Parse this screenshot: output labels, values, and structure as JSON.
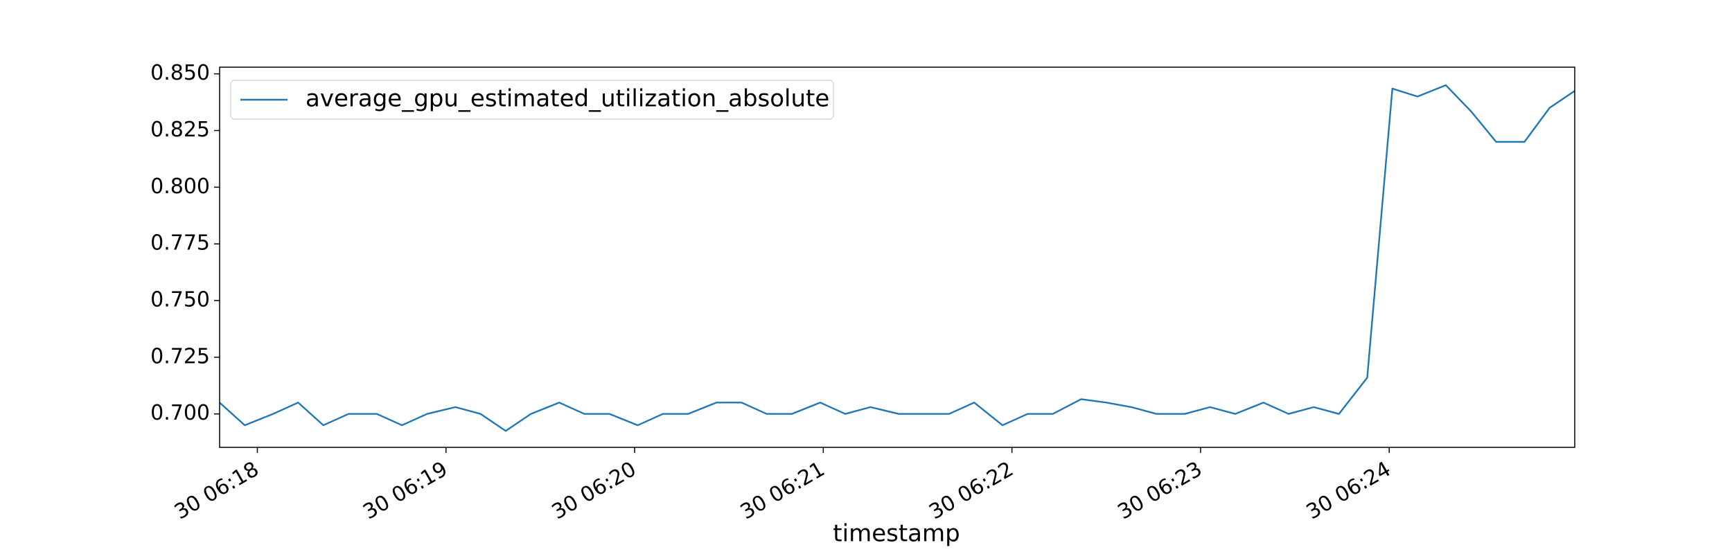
{
  "chart_data": {
    "type": "line",
    "xlabel": "timestamp",
    "x": [
      "30 06:17:48",
      "30 06:17:56",
      "30 06:18:05",
      "30 06:18:13",
      "30 06:18:21",
      "30 06:18:29",
      "30 06:18:38",
      "30 06:18:46",
      "30 06:18:54",
      "30 06:19:03",
      "30 06:19:11",
      "30 06:19:19",
      "30 06:19:27",
      "30 06:19:36",
      "30 06:19:44",
      "30 06:19:52",
      "30 06:20:01",
      "30 06:20:09",
      "30 06:20:17",
      "30 06:20:26",
      "30 06:20:34",
      "30 06:20:42",
      "30 06:20:50",
      "30 06:20:59",
      "30 06:21:07",
      "30 06:21:15",
      "30 06:21:24",
      "30 06:21:32",
      "30 06:21:40",
      "30 06:21:48",
      "30 06:21:57",
      "30 06:22:05",
      "30 06:22:13",
      "30 06:22:22",
      "30 06:22:30",
      "30 06:22:38",
      "30 06:22:46",
      "30 06:22:55",
      "30 06:23:03",
      "30 06:23:11",
      "30 06:23:20",
      "30 06:23:28",
      "30 06:23:36",
      "30 06:23:44",
      "30 06:23:53",
      "30 06:24:01",
      "30 06:24:09",
      "30 06:24:18",
      "30 06:24:26",
      "30 06:24:34",
      "30 06:24:43",
      "30 06:24:51",
      "30 06:24:59"
    ],
    "series": [
      {
        "name": "average_gpu_estimated_utilization_absolute",
        "color": "#1f77b4",
        "values": [
          0.705,
          0.695,
          0.7,
          0.705,
          0.695,
          0.7,
          0.7,
          0.695,
          0.7,
          0.703,
          0.7,
          0.6925,
          0.7,
          0.705,
          0.7,
          0.7,
          0.695,
          0.7,
          0.7,
          0.705,
          0.705,
          0.7,
          0.7,
          0.705,
          0.7,
          0.703,
          0.7,
          0.7,
          0.7,
          0.705,
          0.695,
          0.7,
          0.7,
          0.7065,
          0.705,
          0.703,
          0.7,
          0.7,
          0.703,
          0.7,
          0.705,
          0.7,
          0.703,
          0.7,
          0.716,
          0.8435,
          0.84,
          0.845,
          0.8335,
          0.82,
          0.82,
          0.835,
          0.8425
        ]
      }
    ],
    "xlim": [
      "30 06:17:48",
      "30 06:24:59"
    ],
    "xticks": [
      "30 06:18",
      "30 06:19",
      "30 06:20",
      "30 06:21",
      "30 06:22",
      "30 06:23",
      "30 06:24"
    ],
    "ylim": [
      0.68525,
      0.85295
    ],
    "yticks": [
      {
        "value": 0.7,
        "label": "0.700"
      },
      0.725,
      {
        "value": 0.75,
        "label": "0.750"
      },
      0.775,
      {
        "value": 0.8,
        "label": "0.800"
      },
      0.825,
      {
        "value": 0.85,
        "label": "0.850"
      }
    ],
    "legend": "upper left",
    "grid": false
  }
}
